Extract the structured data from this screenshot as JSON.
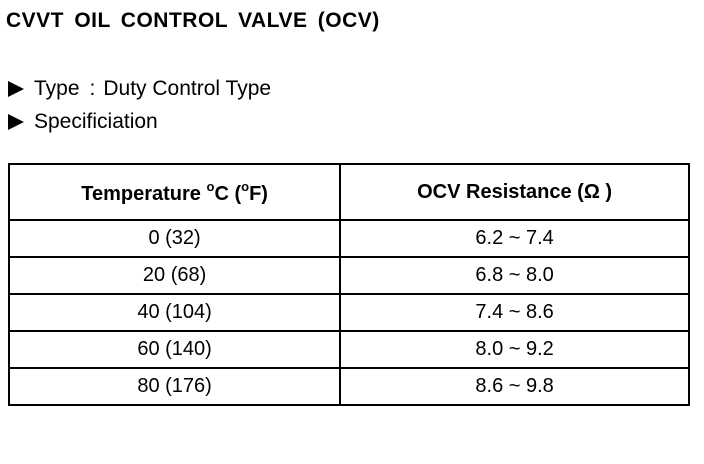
{
  "title": "CVVT OIL CONTROL VALVE (OCV)",
  "bullets": [
    {
      "label": "Type",
      "separator": ":",
      "value": "Duty Control Type"
    },
    {
      "label": "Specificiation"
    }
  ],
  "table": {
    "headers": {
      "temperature": {
        "prefix": "Temperature ",
        "deg1": "o",
        "mid": "C (",
        "deg2": "o",
        "suffix": "F)"
      },
      "resistance": "OCV Resistance (Ω )"
    },
    "rows": [
      {
        "temperature": "0 (32)",
        "resistance": "6.2 ~ 7.4"
      },
      {
        "temperature": "20 (68)",
        "resistance": "6.8 ~ 8.0"
      },
      {
        "temperature": "40 (104)",
        "resistance": "7.4 ~ 8.6"
      },
      {
        "temperature": "60 (140)",
        "resistance": "8.0 ~ 9.2"
      },
      {
        "temperature": "80 (176)",
        "resistance": "8.6 ~ 9.8"
      }
    ]
  }
}
